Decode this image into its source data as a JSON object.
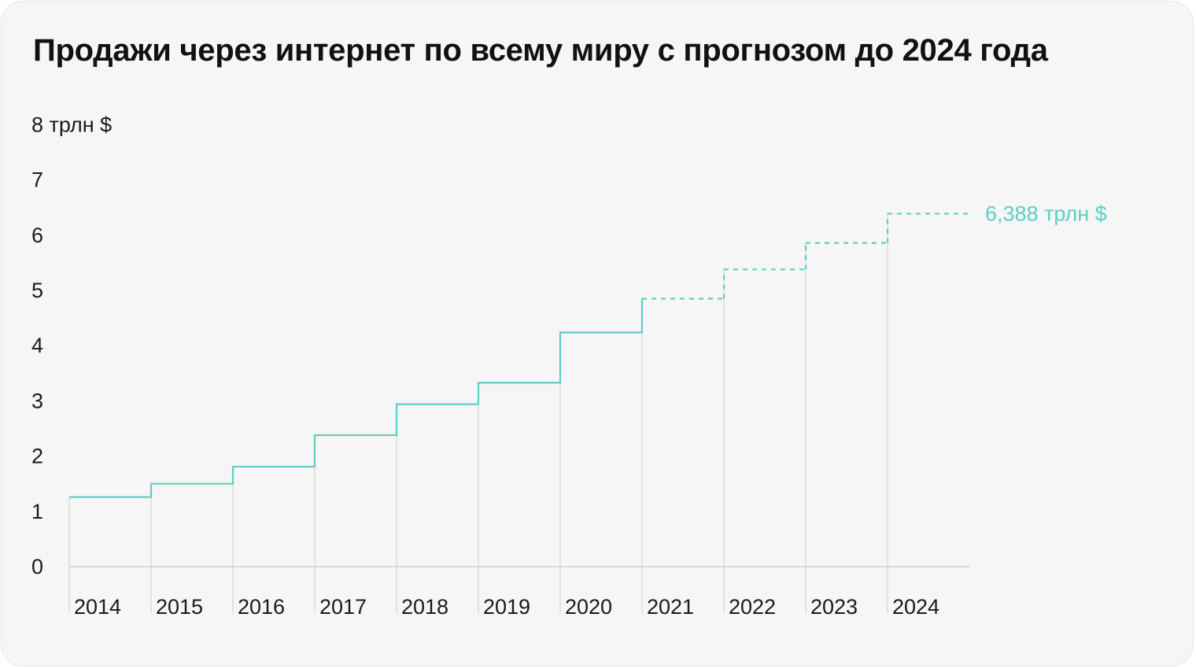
{
  "title": "Продажи через интернет по всему миру с прогнозом до 2024 года",
  "chart_data": {
    "type": "line",
    "step": true,
    "title": "Продажи через интернет по всему миру с прогнозом до 2024 года",
    "ylabel": "трлн $",
    "y_top_label": "8 трлн $",
    "yticks": [
      0,
      1,
      2,
      3,
      4,
      5,
      6,
      7
    ],
    "ylim": [
      0,
      8
    ],
    "categories": [
      "2014",
      "2015",
      "2016",
      "2017",
      "2018",
      "2019",
      "2020",
      "2021",
      "2022",
      "2023",
      "2024"
    ],
    "values": [
      1.26,
      1.5,
      1.81,
      2.38,
      2.94,
      3.33,
      4.24,
      4.85,
      5.38,
      5.86,
      6.388
    ],
    "forecast_from": "2021",
    "end_label": "6,388 трлн $",
    "grid": "vertical",
    "colors": {
      "line": "#5ccfc4",
      "grid": "#dcdcdc",
      "axis": "#d0d0d0",
      "text": "#1a1a1a"
    }
  }
}
